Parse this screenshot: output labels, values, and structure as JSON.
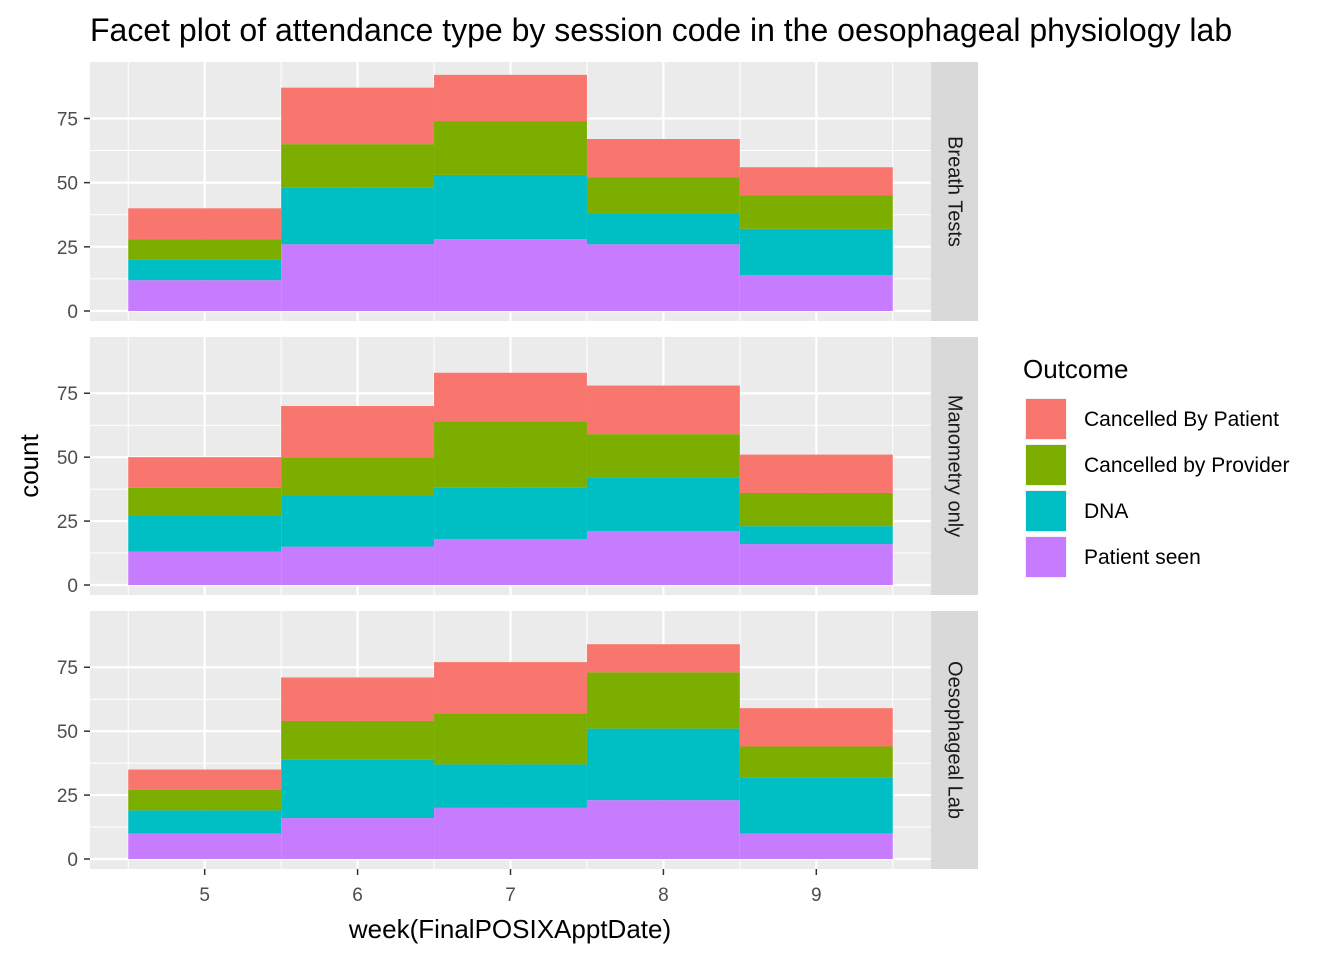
{
  "chart_data": {
    "type": "bar",
    "title": "Facet plot of attendance type by session code in the oesophageal physiology lab",
    "xlabel": "week(FinalPOSIXApptDate)",
    "ylabel": "count",
    "categories": [
      "5",
      "6",
      "7",
      "8",
      "9"
    ],
    "ylim": [
      0,
      97
    ],
    "yticks": [
      0,
      25,
      50,
      75
    ],
    "grid": true,
    "stacked": true,
    "legend": {
      "title": "Outcome",
      "position": "right",
      "entries": [
        {
          "label": "Cancelled By Patient",
          "color": "#F8766D"
        },
        {
          "label": "Cancelled by Provider",
          "color": "#7CAE00"
        },
        {
          "label": "DNA",
          "color": "#00BFC4"
        },
        {
          "label": "Patient seen",
          "color": "#C77CFF"
        }
      ]
    },
    "facets": [
      {
        "label": "Breath Tests",
        "series": [
          {
            "name": "Patient seen",
            "values": [
              12,
              26,
              28,
              26,
              14
            ]
          },
          {
            "name": "DNA",
            "values": [
              8,
              22,
              25,
              12,
              18
            ]
          },
          {
            "name": "Cancelled by Provider",
            "values": [
              8,
              17,
              21,
              14,
              13
            ]
          },
          {
            "name": "Cancelled By Patient",
            "values": [
              12,
              22,
              18,
              15,
              11
            ]
          }
        ]
      },
      {
        "label": "Manometry only",
        "series": [
          {
            "name": "Patient seen",
            "values": [
              13,
              15,
              18,
              21,
              16
            ]
          },
          {
            "name": "DNA",
            "values": [
              14,
              20,
              20,
              21,
              7
            ]
          },
          {
            "name": "Cancelled by Provider",
            "values": [
              11,
              15,
              26,
              17,
              13
            ]
          },
          {
            "name": "Cancelled By Patient",
            "values": [
              12,
              20,
              19,
              19,
              15
            ]
          }
        ]
      },
      {
        "label": "Oesophageal Lab",
        "series": [
          {
            "name": "Patient seen",
            "values": [
              10,
              16,
              20,
              23,
              10
            ]
          },
          {
            "name": "DNA",
            "values": [
              9,
              23,
              17,
              28,
              22
            ]
          },
          {
            "name": "Cancelled by Provider",
            "values": [
              8,
              15,
              20,
              22,
              12
            ]
          },
          {
            "name": "Cancelled By Patient",
            "values": [
              8,
              17,
              20,
              11,
              15
            ]
          }
        ]
      }
    ]
  }
}
